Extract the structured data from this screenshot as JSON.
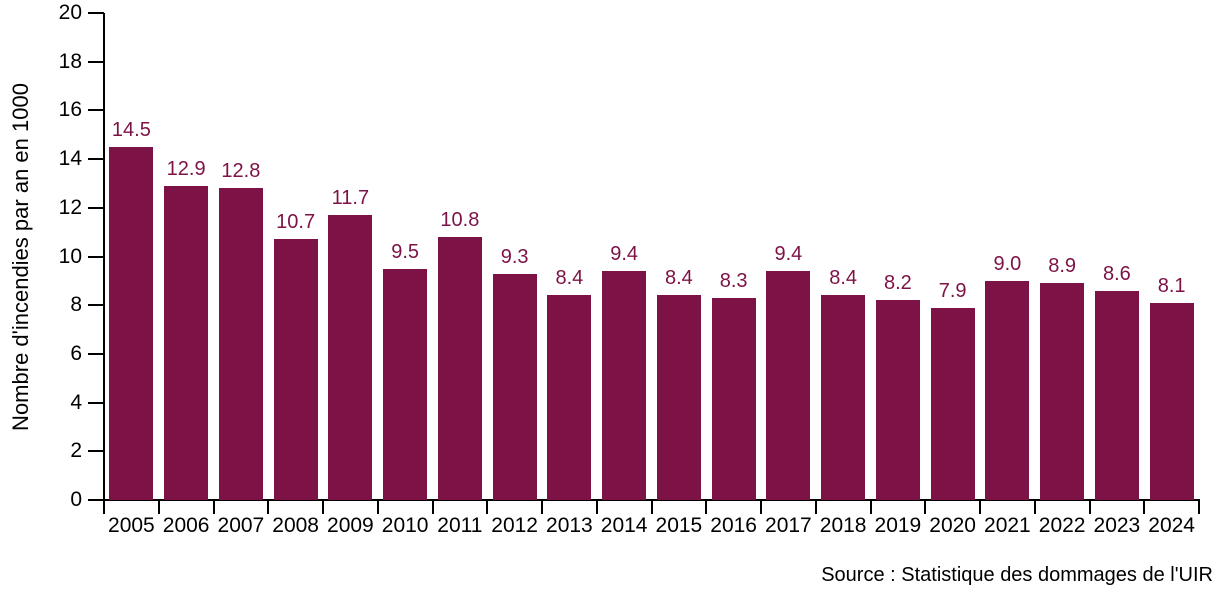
{
  "chart_data": {
    "type": "bar",
    "title": "",
    "ylabel": "Nombre d'incendies par an en 1000",
    "xlabel": "",
    "source": "Source : Statistique des dommages de l'UIR",
    "categories": [
      "2005",
      "2006",
      "2007",
      "2008",
      "2009",
      "2010",
      "2011",
      "2012",
      "2013",
      "2014",
      "2015",
      "2016",
      "2017",
      "2018",
      "2019",
      "2020",
      "2021",
      "2022",
      "2023",
      "2024"
    ],
    "values": [
      14.5,
      12.9,
      12.8,
      10.7,
      11.7,
      9.5,
      10.8,
      9.3,
      8.4,
      9.4,
      8.4,
      8.3,
      9.4,
      8.4,
      8.2,
      7.9,
      9.0,
      8.9,
      8.6,
      8.1
    ],
    "ylim": [
      0,
      20
    ],
    "ytick_step": 2,
    "grid": false,
    "legend": "none",
    "bar_color": "#7C1245",
    "value_label_color": "#7C1245",
    "axis_color": "#000000"
  }
}
